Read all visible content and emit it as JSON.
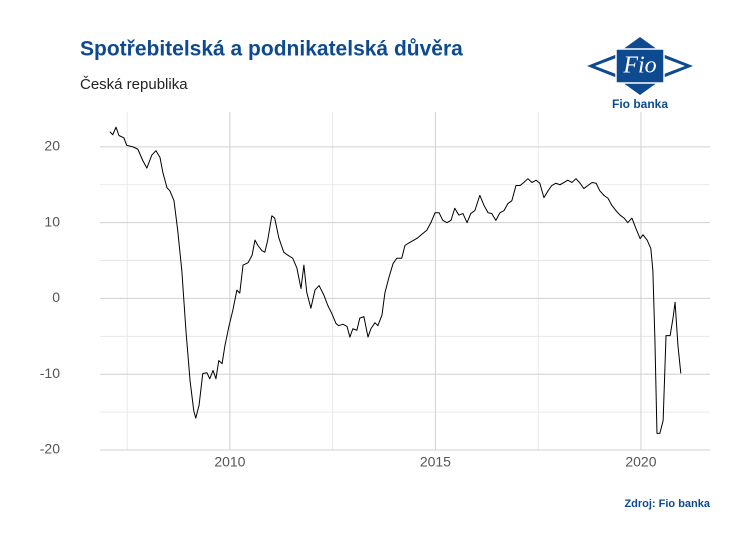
{
  "chart_data": {
    "type": "line",
    "title": "Spotřebitelská a podnikatelská důvěra",
    "subtitle": "Česká republika",
    "source": "Zdroj: Fio banka",
    "logo_text": "Fio",
    "logo_caption": "Fio banka",
    "color": "#000000",
    "grid": true,
    "xlim": [
      2006.84,
      2021.68
    ],
    "xticks": [
      2010,
      2015,
      2020
    ],
    "ylim": [
      -20,
      24.6
    ],
    "yticks": [
      -20,
      -10,
      0,
      10,
      20
    ],
    "x": [
      2007.08,
      2007.15,
      2007.23,
      2007.3,
      2007.42,
      2007.49,
      2007.64,
      2007.76,
      2007.88,
      2007.98,
      2008.1,
      2008.2,
      2008.3,
      2008.37,
      2008.47,
      2008.54,
      2008.64,
      2008.73,
      2008.83,
      2008.93,
      2009.03,
      2009.12,
      2009.17,
      2009.25,
      2009.34,
      2009.44,
      2009.51,
      2009.59,
      2009.66,
      2009.73,
      2009.81,
      2009.88,
      2009.98,
      2010.07,
      2010.17,
      2010.24,
      2010.32,
      2010.44,
      2010.54,
      2010.61,
      2010.68,
      2010.78,
      2010.85,
      2010.92,
      2011.02,
      2011.09,
      2011.19,
      2011.31,
      2011.41,
      2011.53,
      2011.63,
      2011.73,
      2011.8,
      2011.87,
      2011.97,
      2012.07,
      2012.17,
      2012.29,
      2012.38,
      2012.48,
      2012.58,
      2012.65,
      2012.75,
      2012.85,
      2012.92,
      2012.99,
      2013.09,
      2013.16,
      2013.26,
      2013.36,
      2013.43,
      2013.53,
      2013.6,
      2013.7,
      2013.77,
      2013.87,
      2013.97,
      2014.06,
      2014.18,
      2014.26,
      2014.38,
      2014.48,
      2014.57,
      2014.7,
      2014.79,
      2014.89,
      2014.99,
      2015.09,
      2015.18,
      2015.28,
      2015.38,
      2015.47,
      2015.57,
      2015.67,
      2015.77,
      2015.86,
      2015.96,
      2016.08,
      2016.18,
      2016.28,
      2016.37,
      2016.47,
      2016.57,
      2016.67,
      2016.76,
      2016.86,
      2016.96,
      2017.06,
      2017.15,
      2017.25,
      2017.35,
      2017.45,
      2017.54,
      2017.64,
      2017.74,
      2017.83,
      2017.93,
      2018.03,
      2018.13,
      2018.22,
      2018.32,
      2018.42,
      2018.52,
      2018.61,
      2018.71,
      2018.81,
      2018.91,
      2019.0,
      2019.1,
      2019.2,
      2019.29,
      2019.39,
      2019.49,
      2019.59,
      2019.68,
      2019.78,
      2019.88,
      2019.98,
      2020.05,
      2020.15,
      2020.24,
      2020.29,
      2020.34,
      2020.39,
      2020.46,
      2020.54,
      2020.61,
      2020.71,
      2020.78,
      2020.83,
      2020.9,
      2020.97
    ],
    "values": [
      22.0,
      21.6,
      22.6,
      21.5,
      21.2,
      20.2,
      20.0,
      19.7,
      18.2,
      17.2,
      18.9,
      19.5,
      18.6,
      16.6,
      14.6,
      14.2,
      12.9,
      9.0,
      3.7,
      -4.2,
      -10.8,
      -14.8,
      -15.8,
      -14.1,
      -9.9,
      -9.8,
      -10.6,
      -9.5,
      -10.6,
      -8.2,
      -8.6,
      -6.2,
      -3.6,
      -1.6,
      1.1,
      0.7,
      4.4,
      4.7,
      5.7,
      7.7,
      7.0,
      6.3,
      6.1,
      7.7,
      10.9,
      10.6,
      8.0,
      6.1,
      5.7,
      5.3,
      4.0,
      1.3,
      4.4,
      0.8,
      -1.3,
      1.1,
      1.7,
      0.4,
      -0.9,
      -2.0,
      -3.3,
      -3.6,
      -3.4,
      -3.7,
      -5.1,
      -4.0,
      -4.2,
      -2.6,
      -2.4,
      -5.1,
      -4.0,
      -3.2,
      -3.6,
      -2.2,
      0.7,
      2.8,
      4.6,
      5.3,
      5.3,
      7.0,
      7.4,
      7.7,
      8.0,
      8.6,
      9.0,
      10.0,
      11.3,
      11.3,
      10.3,
      10.0,
      10.3,
      11.9,
      11.0,
      11.2,
      10.0,
      11.2,
      11.6,
      13.6,
      12.3,
      11.3,
      11.2,
      10.3,
      11.3,
      11.6,
      12.5,
      12.9,
      14.9,
      14.9,
      15.3,
      15.8,
      15.3,
      15.6,
      15.2,
      13.3,
      14.2,
      14.9,
      15.2,
      15.0,
      15.3,
      15.6,
      15.3,
      15.8,
      15.2,
      14.5,
      14.9,
      15.3,
      15.2,
      14.2,
      13.6,
      13.2,
      12.3,
      11.6,
      11.0,
      10.6,
      10.0,
      10.6,
      9.2,
      7.9,
      8.4,
      7.7,
      6.6,
      3.7,
      -5.5,
      -17.8,
      -17.8,
      -16.1,
      -4.9,
      -4.9,
      -2.6,
      -0.5,
      -6.2,
      -9.9
    ]
  }
}
